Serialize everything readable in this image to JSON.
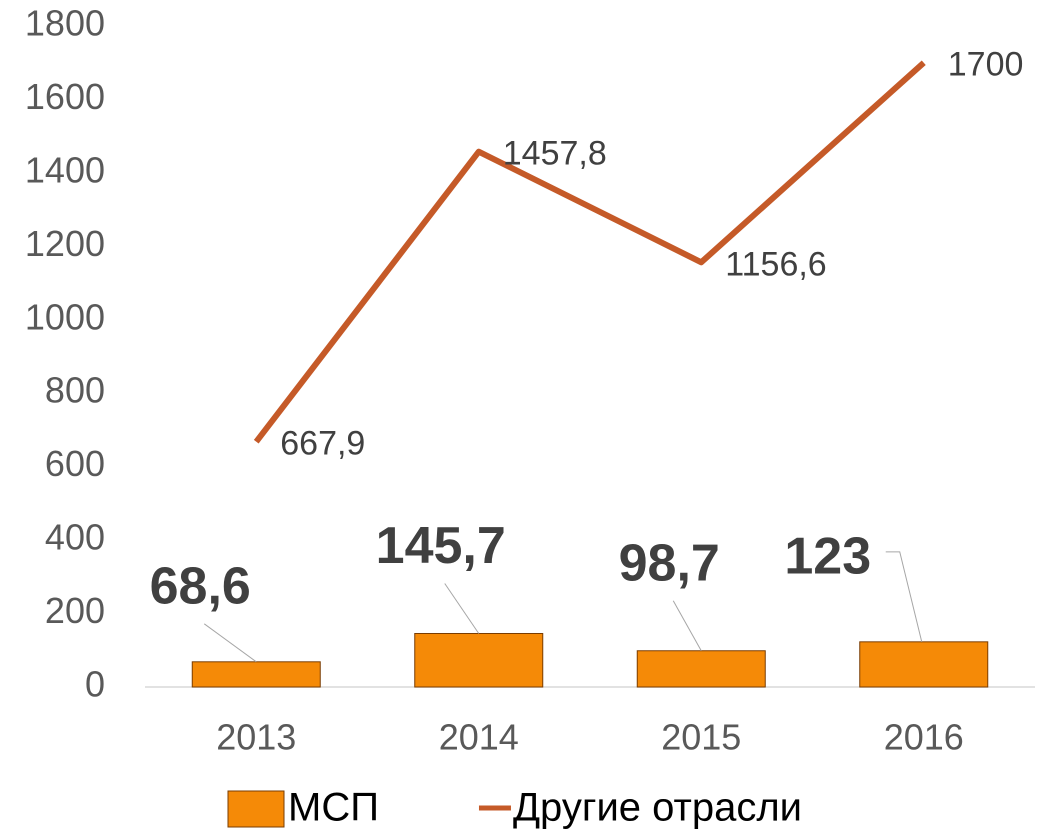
{
  "chart_data": {
    "type": "bar_line",
    "categories": [
      "2013",
      "2014",
      "2015",
      "2016"
    ],
    "series": [
      {
        "name": "МСП",
        "type": "bar",
        "color": "#f58a07",
        "values": [
          68.6,
          145.7,
          98.7,
          123
        ],
        "value_labels": [
          "68,6",
          "145,7",
          "98,7",
          "123"
        ]
      },
      {
        "name": "Другие отрасли",
        "type": "line",
        "color": "#c55a28",
        "values": [
          667.9,
          1457.8,
          1156.6,
          1700
        ],
        "value_labels": [
          "667,9",
          "1457,8",
          "1156,6",
          "1700"
        ]
      }
    ],
    "ylim": [
      0,
      1800
    ],
    "yticks": [
      0,
      200,
      400,
      600,
      800,
      1000,
      1200,
      1400,
      1600,
      1800
    ],
    "grid": false,
    "legend": "bottom"
  }
}
